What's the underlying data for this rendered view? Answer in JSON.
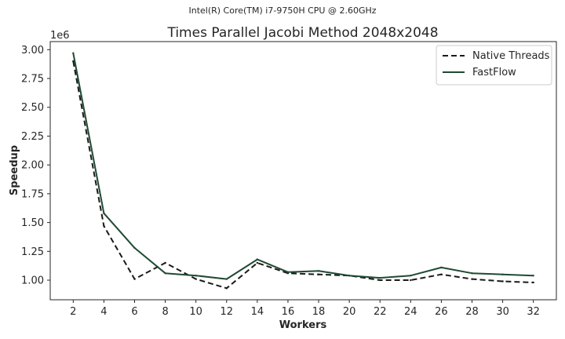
{
  "chart_data": {
    "type": "line",
    "suptitle": "Intel(R) Core(TM) i7-9750H CPU @ 2.60GHz",
    "title": "Times Parallel Jacobi Method 2048x2048",
    "xlabel": "Workers",
    "ylabel": "Speedup",
    "y_offset_label": "1e6",
    "x": [
      2,
      4,
      6,
      8,
      10,
      12,
      14,
      16,
      18,
      20,
      22,
      24,
      26,
      28,
      30,
      32
    ],
    "xlim": [
      0.5,
      33.5
    ],
    "ylim": [
      0.83,
      3.07
    ],
    "y_ticks": [
      1.0,
      1.25,
      1.5,
      1.75,
      2.0,
      2.25,
      2.5,
      2.75,
      3.0
    ],
    "y_tick_labels": [
      "1.00",
      "1.25",
      "1.50",
      "1.75",
      "2.00",
      "2.25",
      "2.50",
      "2.75",
      "3.00"
    ],
    "x_tick_labels": [
      "2",
      "4",
      "6",
      "8",
      "10",
      "12",
      "14",
      "16",
      "18",
      "20",
      "22",
      "24",
      "26",
      "28",
      "30",
      "32"
    ],
    "grid": false,
    "legend_position": "top-right",
    "series": [
      {
        "name": "Native Threads",
        "style": "dashed",
        "color": "#1a1a1a",
        "values": [
          2.9,
          1.47,
          1.01,
          1.15,
          1.01,
          0.93,
          1.15,
          1.06,
          1.05,
          1.04,
          1.0,
          1.0,
          1.05,
          1.01,
          0.99,
          0.98
        ]
      },
      {
        "name": "FastFlow",
        "style": "solid",
        "color": "#1f4a33",
        "values": [
          2.97,
          1.58,
          1.28,
          1.06,
          1.04,
          1.01,
          1.18,
          1.07,
          1.08,
          1.04,
          1.02,
          1.04,
          1.11,
          1.06,
          1.05,
          1.04
        ]
      }
    ]
  }
}
